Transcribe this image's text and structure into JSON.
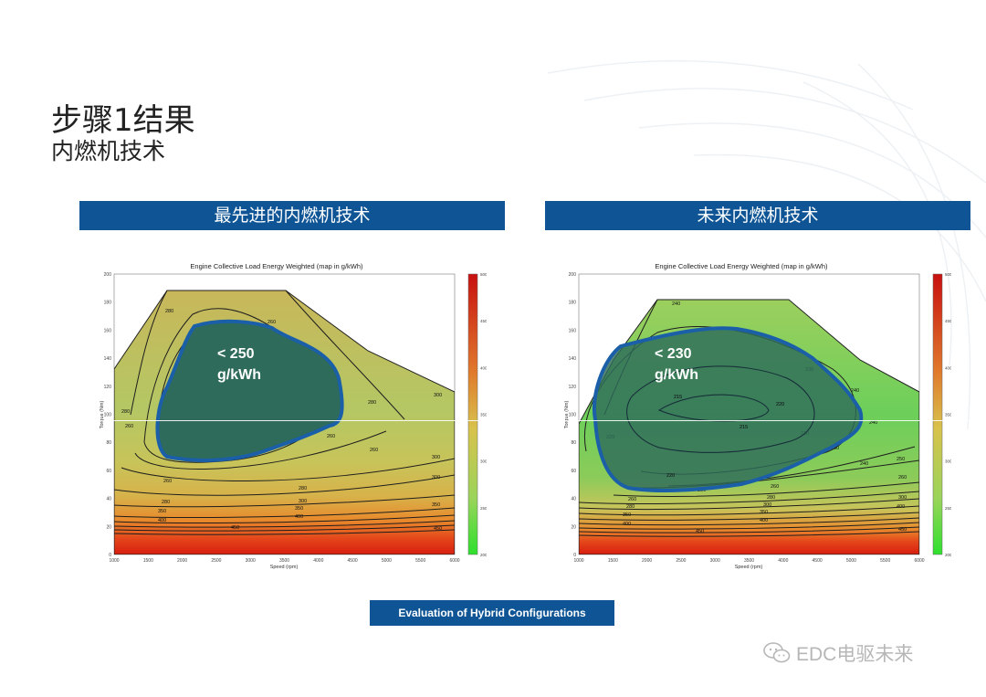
{
  "header": {
    "title": "步骤1结果",
    "subtitle": "内燃机技术"
  },
  "panels": [
    {
      "banner": "最先进的内燃机技术",
      "region_label_line1": "< 250",
      "region_label_line2": "g/kWh"
    },
    {
      "banner": "未来内燃机技术",
      "region_label_line1": "< 230",
      "region_label_line2": "g/kWh"
    }
  ],
  "footer": {
    "banner": "Evaluation of Hybrid Configurations"
  },
  "watermark": {
    "text": "EDC电驱未来",
    "icon": "wechat-icon"
  },
  "colors": {
    "banner": "#0f5596",
    "region_fill": "#2e6b5a",
    "region_outline": "#1a5fa8"
  },
  "chart_data": [
    {
      "type": "heatmap",
      "title": "Engine Collective Load Energy Weighted (map in g/kWh)",
      "xlabel": "Speed (rpm)",
      "ylabel": "Torque (Nm)",
      "x_ticks": [
        "1000",
        "1500",
        "2000",
        "2500",
        "3000",
        "3500",
        "4000",
        "4500",
        "5000",
        "5500",
        "6000"
      ],
      "y_ticks": [
        "0",
        "20",
        "40",
        "60",
        "80",
        "100",
        "120",
        "140",
        "160",
        "180",
        "200"
      ],
      "xlim": [
        1000,
        6000
      ],
      "ylim": [
        0,
        200
      ],
      "colorbar_ticks": [
        "500",
        "450",
        "400",
        "350",
        "300",
        "250",
        "200"
      ],
      "colorbar_range": [
        200,
        500
      ],
      "contour_labels": [
        "250",
        "260",
        "280",
        "300",
        "350",
        "400",
        "450",
        "500"
      ],
      "highlight_region": "< 250 g/kWh"
    },
    {
      "type": "heatmap",
      "title": "Engine Collective Load Energy Weighted (map in g/kWh)",
      "xlabel": "Speed (rpm)",
      "ylabel": "Torque (Nm)",
      "x_ticks": [
        "1000",
        "1500",
        "2000",
        "2500",
        "3000",
        "3500",
        "4000",
        "4500",
        "5000",
        "5500",
        "6000"
      ],
      "y_ticks": [
        "0",
        "20",
        "40",
        "60",
        "80",
        "100",
        "120",
        "140",
        "160",
        "180",
        "200"
      ],
      "xlim": [
        1000,
        6000
      ],
      "ylim": [
        0,
        200
      ],
      "colorbar_ticks": [
        "500",
        "450",
        "400",
        "350",
        "300",
        "250",
        "200"
      ],
      "colorbar_range": [
        200,
        500
      ],
      "contour_labels": [
        "215",
        "220",
        "230",
        "240",
        "250",
        "260",
        "280",
        "300",
        "350",
        "400",
        "450",
        "500"
      ],
      "highlight_region": "< 230 g/kWh"
    }
  ]
}
